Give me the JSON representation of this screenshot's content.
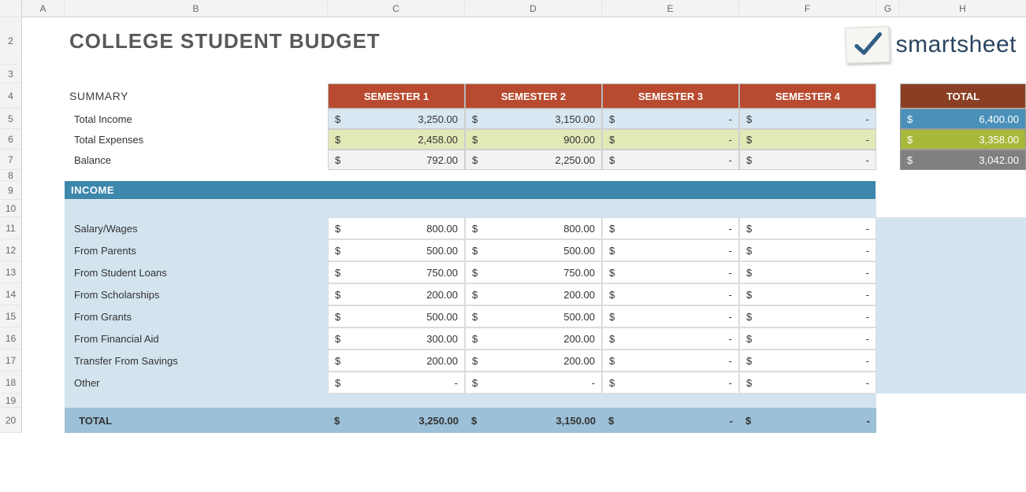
{
  "columns": [
    "A",
    "B",
    "C",
    "D",
    "E",
    "F",
    "G",
    "H"
  ],
  "row_numbers": [
    "2",
    "3",
    "4",
    "5",
    "6",
    "7",
    "8",
    "9",
    "10",
    "11",
    "12",
    "13",
    "14",
    "15",
    "16",
    "17",
    "18",
    "19",
    "20"
  ],
  "row_heights": {
    "colhdr": 22,
    "r2": 60,
    "r3": 24,
    "r4": 32,
    "r5": 26,
    "r6": 26,
    "r7": 26,
    "r8": 14,
    "r9": 24,
    "r10": 22,
    "r11": 28,
    "r12": 28,
    "r13": 28,
    "r14": 28,
    "r15": 28,
    "r16": 28,
    "r17": 28,
    "r18": 28,
    "r19": 18,
    "r20": 32
  },
  "title": "COLLEGE STUDENT BUDGET",
  "title_fontsize": 26,
  "logo": {
    "brand": "smartsheet",
    "check_color": "#2f5e86"
  },
  "summary": {
    "label": "SUMMARY",
    "headers": [
      "SEMESTER 1",
      "SEMESTER 2",
      "SEMESTER 3",
      "SEMESTER 4"
    ],
    "total_header": "TOTAL",
    "rows": [
      {
        "label": "Total Income",
        "values": [
          "3,250.00",
          "3,150.00",
          "-",
          "-"
        ],
        "total": "6,400.00",
        "row_bg": "#d9e7f2",
        "total_bg": "#4a90b8"
      },
      {
        "label": "Total Expenses",
        "values": [
          "2,458.00",
          "900.00",
          "-",
          "-"
        ],
        "total": "3,358.00",
        "row_bg": "#e3e8b7",
        "total_bg": "#a8b83a"
      },
      {
        "label": "Balance",
        "values": [
          "792.00",
          "2,250.00",
          "-",
          "-"
        ],
        "total": "3,042.00",
        "row_bg": "#f2f2f2",
        "total_bg": "#808080"
      }
    ],
    "header_bg": "#b84a2f",
    "total_header_bg": "#8a3f24"
  },
  "income": {
    "section_label": "INCOME",
    "section_bg": "#3d87ad",
    "panel_bg": "#d3e4ef",
    "total_row_bg": "#9bc0d7",
    "items": [
      {
        "label": "Salary/Wages",
        "values": [
          "800.00",
          "800.00",
          "-",
          "-"
        ]
      },
      {
        "label": "From Parents",
        "values": [
          "500.00",
          "500.00",
          "-",
          "-"
        ]
      },
      {
        "label": "From Student Loans",
        "values": [
          "750.00",
          "750.00",
          "-",
          "-"
        ]
      },
      {
        "label": "From Scholarships",
        "values": [
          "200.00",
          "200.00",
          "-",
          "-"
        ]
      },
      {
        "label": "From Grants",
        "values": [
          "500.00",
          "500.00",
          "-",
          "-"
        ]
      },
      {
        "label": "From Financial Aid",
        "values": [
          "300.00",
          "200.00",
          "-",
          "-"
        ]
      },
      {
        "label": "Transfer From Savings",
        "values": [
          "200.00",
          "200.00",
          "-",
          "-"
        ]
      },
      {
        "label": "Other",
        "values": [
          "-",
          "-",
          "-",
          "-"
        ]
      }
    ],
    "total_label": "TOTAL",
    "total_values": [
      "3,250.00",
      "3,150.00",
      "-",
      "-"
    ]
  },
  "colors": {
    "grid_line": "#e5e5e5",
    "header_text": "#666666",
    "title_text": "#595959",
    "cell_border": "#cfcfcf"
  }
}
